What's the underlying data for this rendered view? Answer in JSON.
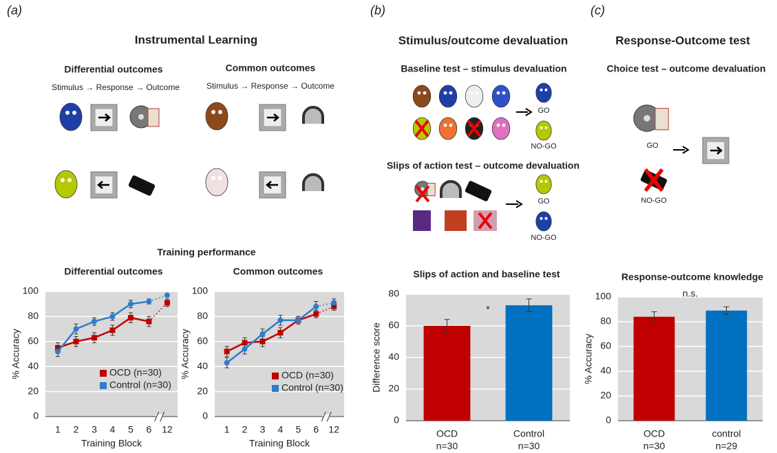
{
  "panel_a": {
    "label": "(a)",
    "title": "Instrumental Learning",
    "left": {
      "title": "Differential outcomes",
      "sequence": "Stimulus → Response → Outcome"
    },
    "right": {
      "title": "Common outcomes",
      "sequence": "Stimulus → Response → Outcome"
    },
    "training_title": "Training performance"
  },
  "panel_b": {
    "label": "(b)",
    "title": "Stimulus/outcome devaluation",
    "baseline": {
      "title": "Baseline test – stimulus devaluation",
      "go": "GO",
      "nogo": "NO-GO"
    },
    "slips": {
      "title": "Slips of action test – outcome devaluation",
      "go": "GO",
      "nogo": "NO-GO"
    }
  },
  "panel_c": {
    "label": "(c)",
    "title": "Response-Outcome test",
    "subtitle": "Choice test – outcome devaluation",
    "go": "GO",
    "nogo": "NO-GO"
  },
  "chart_data": [
    {
      "type": "line",
      "title": "Differential outcomes",
      "xlabel": "Training Block",
      "ylabel": "% Accuracy",
      "categories": [
        "1",
        "2",
        "3",
        "4",
        "5",
        "6",
        "12"
      ],
      "axis_break": true,
      "ylim": [
        0,
        100
      ],
      "yticks": [
        0,
        20,
        40,
        60,
        80,
        100
      ],
      "grid": true,
      "legend": "lower right",
      "series": [
        {
          "name": "OCD (n=30)",
          "color": "#c00000",
          "marker": "square",
          "values": [
            55,
            60,
            63,
            69,
            79,
            76,
            91
          ],
          "errors": [
            4,
            4,
            4,
            4,
            4,
            4,
            3
          ]
        },
        {
          "name": "Control (n=30)",
          "color": "#2e7bcf",
          "marker": "circle",
          "values": [
            52,
            70,
            76,
            80,
            90,
            92,
            97
          ],
          "errors": [
            4,
            4,
            3,
            3,
            3,
            2,
            1
          ]
        }
      ]
    },
    {
      "type": "line",
      "title": "Common outcomes",
      "xlabel": "Training Block",
      "ylabel": "% Accuracy",
      "categories": [
        "1",
        "2",
        "3",
        "4",
        "5",
        "6",
        "12"
      ],
      "axis_break": true,
      "ylim": [
        0,
        100
      ],
      "yticks": [
        0,
        20,
        40,
        60,
        80,
        100
      ],
      "grid": true,
      "legend": "lower right",
      "series": [
        {
          "name": "OCD (n=30)",
          "color": "#c00000",
          "marker": "square",
          "values": [
            52,
            59,
            60,
            67,
            77,
            82,
            88
          ],
          "errors": [
            4,
            4,
            4,
            4,
            3,
            3,
            3
          ]
        },
        {
          "name": "Control (n=30)",
          "color": "#2e7bcf",
          "marker": "circle",
          "values": [
            43,
            54,
            66,
            77,
            77,
            88,
            91
          ],
          "errors": [
            4,
            4,
            4,
            4,
            3,
            4,
            3
          ]
        }
      ]
    },
    {
      "type": "bar",
      "title": "Slips of action and baseline test",
      "ylabel": "Difference score",
      "categories": [
        "OCD",
        "Control"
      ],
      "category_notes": [
        "n=30",
        "n=30"
      ],
      "colors": [
        "#c00000",
        "#0070c0"
      ],
      "values": [
        60,
        73
      ],
      "errors": [
        4,
        4
      ],
      "annotation": "*",
      "ylim": [
        0,
        80
      ],
      "yticks": [
        0,
        20,
        40,
        60,
        80
      ],
      "grid": true
    },
    {
      "type": "bar",
      "title": "Response-outcome knowledge",
      "ylabel": "% Accuracy",
      "categories": [
        "OCD",
        "control"
      ],
      "category_notes": [
        "n=30",
        "n=29"
      ],
      "colors": [
        "#c00000",
        "#0070c0"
      ],
      "values": [
        84,
        89
      ],
      "errors": [
        4,
        3
      ],
      "annotation": "n.s.",
      "ylim": [
        0,
        100
      ],
      "yticks": [
        0,
        20,
        40,
        60,
        80,
        100
      ],
      "grid": true
    }
  ]
}
